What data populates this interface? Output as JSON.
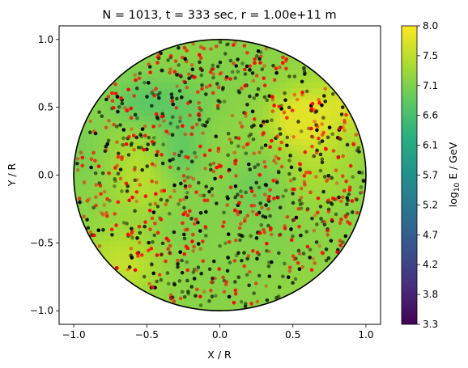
{
  "chart_data": {
    "type": "scatter",
    "title": "N = 1013, t = 333 sec, r = 1.00e+11 m",
    "xlabel": "X / R",
    "ylabel": "Y / R",
    "xlim": [
      -1.1,
      1.1
    ],
    "ylim": [
      -1.1,
      1.1
    ],
    "xticks": [
      "−1.0",
      "−0.5",
      "0.0",
      "0.5",
      "1.0"
    ],
    "xtick_values": [
      -1.0,
      -0.5,
      0.0,
      0.5,
      1.0
    ],
    "yticks": [
      "−1.0",
      "−0.5",
      "0.0",
      "0.5",
      "1.0"
    ],
    "ytick_values": [
      -1.0,
      -0.5,
      0.0,
      0.5,
      1.0
    ],
    "grid": false,
    "background_field": {
      "description_of_quantity": "log10 E / GeV",
      "range": [
        6.4,
        7.8
      ],
      "shape": "unit-circle"
    },
    "particle_count": 1013,
    "series": [
      {
        "color": "#000000",
        "count_shown": 510
      },
      {
        "color": "#ff0000",
        "count_shown": 503
      }
    ],
    "colorbar": {
      "label_prefix": "log",
      "label_sub": "10",
      "label_suffix": " E / GeV",
      "colormap": "viridis",
      "vmin": 3.3,
      "vmax": 8.0,
      "ticks": [
        "8.0",
        "7.5",
        "7.1",
        "6.6",
        "6.1",
        "5.7",
        "5.2",
        "4.7",
        "4.2",
        "3.8",
        "3.3"
      ],
      "tick_values": [
        8.0,
        7.53,
        7.06,
        6.59,
        6.12,
        5.65,
        5.18,
        4.71,
        4.24,
        3.77,
        3.3
      ]
    }
  }
}
